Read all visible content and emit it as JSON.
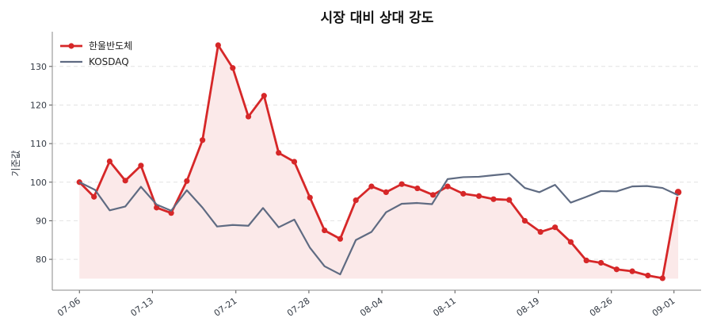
{
  "chart_data": {
    "type": "line",
    "title": "시장 대비 상대 강도",
    "xlabel": "",
    "ylabel": "기준값",
    "x_tick_labels": [
      "07-06",
      "07-13",
      "07-21",
      "07-28",
      "08-04",
      "08-11",
      "08-19",
      "08-26",
      "09-01"
    ],
    "x_tick_days": [
      0,
      7,
      15,
      22,
      29,
      36,
      44,
      51,
      57
    ],
    "y_ticks": [
      80,
      90,
      100,
      110,
      120,
      130
    ],
    "ylim": [
      72,
      139
    ],
    "xlim_days": [
      -2.6,
      59.6
    ],
    "grid": "horizontal dashed",
    "legend_position": "top-left",
    "fill_baseline": 75,
    "series": [
      {
        "name": "한울반도체",
        "color": "#d62728",
        "fill": "#fbe9e9",
        "markers": true,
        "points": [
          {
            "day": 0,
            "value": 100.0
          },
          {
            "day": 1.4,
            "value": 96.2
          },
          {
            "day": 2.9,
            "value": 105.4
          },
          {
            "day": 4.4,
            "value": 100.4
          },
          {
            "day": 5.9,
            "value": 104.3
          },
          {
            "day": 7.4,
            "value": 93.4
          },
          {
            "day": 8.8,
            "value": 92.0
          },
          {
            "day": 10.3,
            "value": 100.3
          },
          {
            "day": 11.8,
            "value": 110.9
          },
          {
            "day": 13.3,
            "value": 135.5
          },
          {
            "day": 14.7,
            "value": 129.6
          },
          {
            "day": 16.2,
            "value": 117.0
          },
          {
            "day": 17.7,
            "value": 122.4
          },
          {
            "day": 19.1,
            "value": 107.6
          },
          {
            "day": 20.6,
            "value": 105.3
          },
          {
            "day": 22.1,
            "value": 96.0
          },
          {
            "day": 23.5,
            "value": 87.5
          },
          {
            "day": 25.0,
            "value": 85.3
          },
          {
            "day": 26.5,
            "value": 95.3
          },
          {
            "day": 28.0,
            "value": 98.9
          },
          {
            "day": 29.4,
            "value": 97.4
          },
          {
            "day": 30.9,
            "value": 99.5
          },
          {
            "day": 32.4,
            "value": 98.4
          },
          {
            "day": 33.9,
            "value": 96.7
          },
          {
            "day": 35.3,
            "value": 98.9
          },
          {
            "day": 36.8,
            "value": 97.0
          },
          {
            "day": 38.3,
            "value": 96.4
          },
          {
            "day": 39.7,
            "value": 95.6
          },
          {
            "day": 41.2,
            "value": 95.4
          },
          {
            "day": 42.7,
            "value": 90.0
          },
          {
            "day": 44.2,
            "value": 87.1
          },
          {
            "day": 45.6,
            "value": 88.3
          },
          {
            "day": 47.1,
            "value": 84.5
          },
          {
            "day": 48.6,
            "value": 79.7
          },
          {
            "day": 50.0,
            "value": 79.1
          },
          {
            "day": 51.5,
            "value": 77.4
          },
          {
            "day": 53.0,
            "value": 76.9
          },
          {
            "day": 54.5,
            "value": 75.8
          },
          {
            "day": 55.9,
            "value": 75.1
          },
          {
            "day": 57.4,
            "value": 97.4
          }
        ]
      },
      {
        "name": "KOSDAQ",
        "color": "#5f6b82",
        "markers": false,
        "points": [
          {
            "day": 0,
            "value": 100.0
          },
          {
            "day": 1.5,
            "value": 98.0
          },
          {
            "day": 2.9,
            "value": 92.7
          },
          {
            "day": 4.4,
            "value": 93.7
          },
          {
            "day": 5.9,
            "value": 98.8
          },
          {
            "day": 7.4,
            "value": 94.2
          },
          {
            "day": 8.8,
            "value": 92.6
          },
          {
            "day": 10.3,
            "value": 97.9
          },
          {
            "day": 11.8,
            "value": 93.4
          },
          {
            "day": 13.2,
            "value": 88.5
          },
          {
            "day": 14.7,
            "value": 88.9
          },
          {
            "day": 16.2,
            "value": 88.7
          },
          {
            "day": 17.6,
            "value": 93.3
          },
          {
            "day": 19.1,
            "value": 88.3
          },
          {
            "day": 20.6,
            "value": 90.3
          },
          {
            "day": 22.1,
            "value": 83.0
          },
          {
            "day": 23.5,
            "value": 78.2
          },
          {
            "day": 25.0,
            "value": 76.1
          },
          {
            "day": 26.5,
            "value": 85.0
          },
          {
            "day": 28.0,
            "value": 87.1
          },
          {
            "day": 29.4,
            "value": 92.2
          },
          {
            "day": 30.9,
            "value": 94.4
          },
          {
            "day": 32.4,
            "value": 94.6
          },
          {
            "day": 33.8,
            "value": 94.3
          },
          {
            "day": 35.3,
            "value": 100.8
          },
          {
            "day": 36.8,
            "value": 101.3
          },
          {
            "day": 38.3,
            "value": 101.4
          },
          {
            "day": 39.7,
            "value": 101.8
          },
          {
            "day": 41.2,
            "value": 102.2
          },
          {
            "day": 42.7,
            "value": 98.5
          },
          {
            "day": 44.1,
            "value": 97.4
          },
          {
            "day": 45.6,
            "value": 99.3
          },
          {
            "day": 47.1,
            "value": 94.7
          },
          {
            "day": 48.5,
            "value": 96.1
          },
          {
            "day": 50.0,
            "value": 97.7
          },
          {
            "day": 51.5,
            "value": 97.6
          },
          {
            "day": 53.0,
            "value": 98.9
          },
          {
            "day": 54.4,
            "value": 99.0
          },
          {
            "day": 55.9,
            "value": 98.5
          },
          {
            "day": 57.4,
            "value": 96.6
          }
        ]
      }
    ]
  }
}
